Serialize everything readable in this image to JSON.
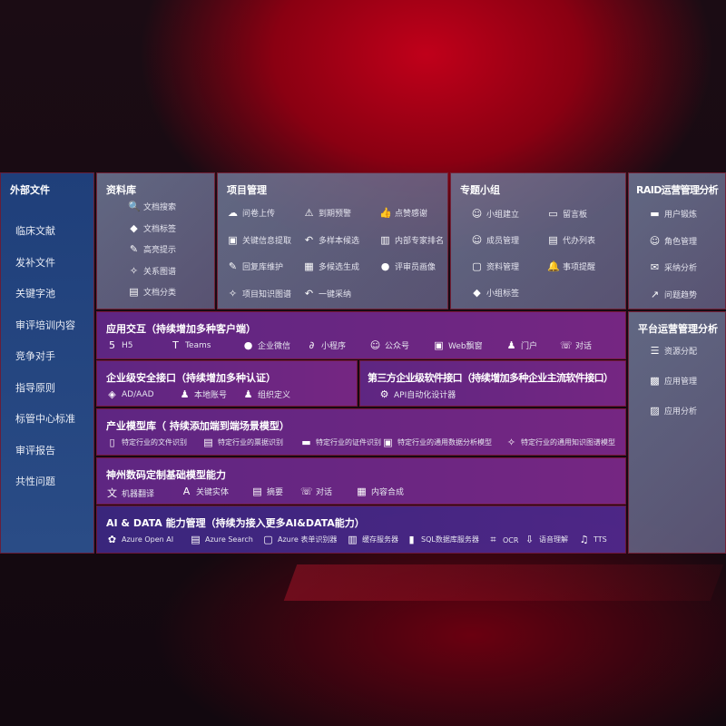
{
  "external": {
    "title": "外部文件",
    "items": [
      "临床文献",
      "发补文件",
      "关键字池",
      "审评培训内容",
      "竞争对手",
      "指导原则",
      "标管中心标准",
      "审评报告",
      "共性问题"
    ]
  },
  "library": {
    "title": "资料库",
    "items": [
      {
        "icon": "doc-search-icon",
        "label": "文档搜索"
      },
      {
        "icon": "tag-icon",
        "label": "文档标签"
      },
      {
        "icon": "pen-icon",
        "label": "高亮提示"
      },
      {
        "icon": "graph-icon",
        "label": "关系图谱"
      },
      {
        "icon": "doc-stack-icon",
        "label": "文档分类"
      }
    ]
  },
  "project": {
    "title": "项目管理",
    "items": [
      {
        "icon": "cloud-upload-icon",
        "label": "问卷上传"
      },
      {
        "icon": "alarm-icon",
        "label": "到期预警"
      },
      {
        "icon": "thumbs-up-icon",
        "label": "点赞感谢"
      },
      {
        "icon": "window-icon",
        "label": "关键信息提取"
      },
      {
        "icon": "reply-icon",
        "label": "多样本候选"
      },
      {
        "icon": "ranking-icon",
        "label": "内部专家排名"
      },
      {
        "icon": "edit-icon",
        "label": "回复库维护"
      },
      {
        "icon": "puzzle-icon",
        "label": "多候选生成"
      },
      {
        "icon": "user-icon",
        "label": "评审员画像"
      },
      {
        "icon": "graph-icon",
        "label": "项目知识图谱"
      },
      {
        "icon": "reply-icon",
        "label": "一键采纳"
      }
    ]
  },
  "group": {
    "title": "专题小组",
    "items": [
      {
        "icon": "users-icon",
        "label": "小组建立"
      },
      {
        "icon": "bbs-icon",
        "label": "留言板"
      },
      {
        "icon": "user-add-icon",
        "label": "成员管理"
      },
      {
        "icon": "clipboard-icon",
        "label": "代办列表"
      },
      {
        "icon": "folder-icon",
        "label": "资料管理"
      },
      {
        "icon": "bell-icon",
        "label": "事项提醒"
      },
      {
        "icon": "tag-icon",
        "label": "小组标签"
      }
    ]
  },
  "raid": {
    "title": "RAID运营管理分析",
    "items": [
      {
        "icon": "id-card-icon",
        "label": "用户锻炼"
      },
      {
        "icon": "users-icon",
        "label": "角色管理"
      },
      {
        "icon": "qa-icon",
        "label": "采纳分析"
      },
      {
        "icon": "trend-icon",
        "label": "问题趋势"
      }
    ]
  },
  "platform": {
    "title": "平台运营管理分析",
    "items": [
      {
        "icon": "list-icon",
        "label": "资源分配"
      },
      {
        "icon": "apps-icon",
        "label": "应用管理"
      },
      {
        "icon": "chart-icon",
        "label": "应用分析"
      }
    ]
  },
  "apps": {
    "title": "应用交互（持续增加多种客户端）",
    "items": [
      {
        "icon": "html5-icon",
        "label": "H5"
      },
      {
        "icon": "teams-icon",
        "label": "Teams"
      },
      {
        "icon": "wechat-icon",
        "label": "企业微信"
      },
      {
        "icon": "miniprogram-icon",
        "label": "小程序"
      },
      {
        "icon": "official-account-icon",
        "label": "公众号"
      },
      {
        "icon": "window-icon",
        "label": "Web飘窗"
      },
      {
        "icon": "portal-icon",
        "label": "门户"
      },
      {
        "icon": "chat-icon",
        "label": "对话"
      }
    ]
  },
  "security": {
    "title": "企业级安全接口（持续增加多种认证）",
    "items": [
      {
        "icon": "aad-icon",
        "label": "AD/AAD"
      },
      {
        "icon": "local-account-icon",
        "label": "本地账号"
      },
      {
        "icon": "org-icon",
        "label": "组织定义"
      }
    ]
  },
  "thirdparty": {
    "title": "第三方企业级软件接口（持续增加多种企业主流软件接口）",
    "items": [
      {
        "icon": "gear-icon",
        "label": "API自动化设计器"
      }
    ]
  },
  "industry": {
    "title": "产业模型库（ 持续添加端到端场景模型）",
    "items": [
      {
        "icon": "file-icon",
        "label": "特定行业的文件识别"
      },
      {
        "icon": "receipt-icon",
        "label": "特定行业的票据识别"
      },
      {
        "icon": "id-card-icon",
        "label": "特定行业的证件识别"
      },
      {
        "icon": "analytics-icon",
        "label": "特定行业的通用数据分析模型"
      },
      {
        "icon": "graph-icon",
        "label": "特定行业的通用知识图谱模型"
      }
    ]
  },
  "base": {
    "title": "神州数码定制基础模型能力",
    "items": [
      {
        "icon": "translate-icon",
        "label": "机器翻译"
      },
      {
        "icon": "entity-icon",
        "label": "关键实体"
      },
      {
        "icon": "summary-icon",
        "label": "摘要"
      },
      {
        "icon": "chat-icon",
        "label": "对话"
      },
      {
        "icon": "puzzle-icon",
        "label": "内容合成"
      }
    ]
  },
  "ai": {
    "title": "AI & DATA 能力管理（持续为接入更多AI&DATA能力）",
    "items": [
      {
        "icon": "openai-icon",
        "label": "Azure Open AI"
      },
      {
        "icon": "search-doc-icon",
        "label": "Azure Search"
      },
      {
        "icon": "form-icon",
        "label": "Azure 表单识别器"
      },
      {
        "icon": "cache-icon",
        "label": "缓存服务器"
      },
      {
        "icon": "database-icon",
        "label": "SQL数据库服务器"
      },
      {
        "icon": "ocr-icon",
        "label": "OCR"
      },
      {
        "icon": "speech-icon",
        "label": "语音理解"
      },
      {
        "icon": "tts-icon",
        "label": "TTS"
      }
    ]
  }
}
